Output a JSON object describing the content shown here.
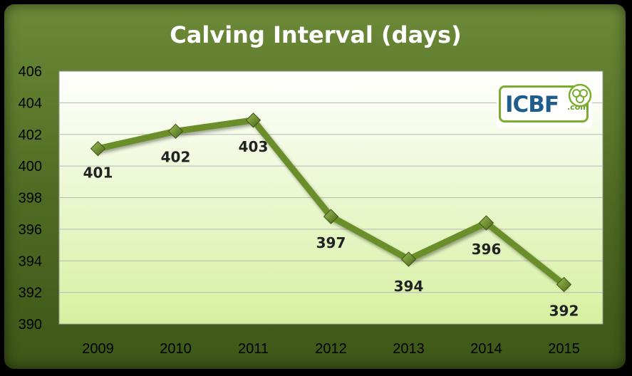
{
  "chart_data": {
    "type": "line",
    "title": "Calving Interval (days)",
    "categories": [
      "2009",
      "2010",
      "2011",
      "2012",
      "2013",
      "2014",
      "2015"
    ],
    "values": [
      401.1,
      402.2,
      402.9,
      396.8,
      394.1,
      396.4,
      392.5
    ],
    "data_labels": [
      "401",
      "402",
      "403",
      "397",
      "394",
      "396",
      "392"
    ],
    "ylim": [
      390,
      406
    ],
    "yticks": [
      "390",
      "392",
      "394",
      "396",
      "398",
      "400",
      "402",
      "404",
      "406"
    ],
    "grid": true,
    "marker": "diamond",
    "legend": "none",
    "colors": {
      "line": "#6b8e2a",
      "marker": "#55701f",
      "frame": "#4e6a22",
      "plot_top": "#ffffff",
      "plot_bottom": "#d6f0a0",
      "title": "#ffffff"
    }
  },
  "logo": {
    "text": "ICBF",
    "sub": ".com",
    "brand_blue": "#1f5e8c",
    "brand_green": "#7cae2e"
  }
}
